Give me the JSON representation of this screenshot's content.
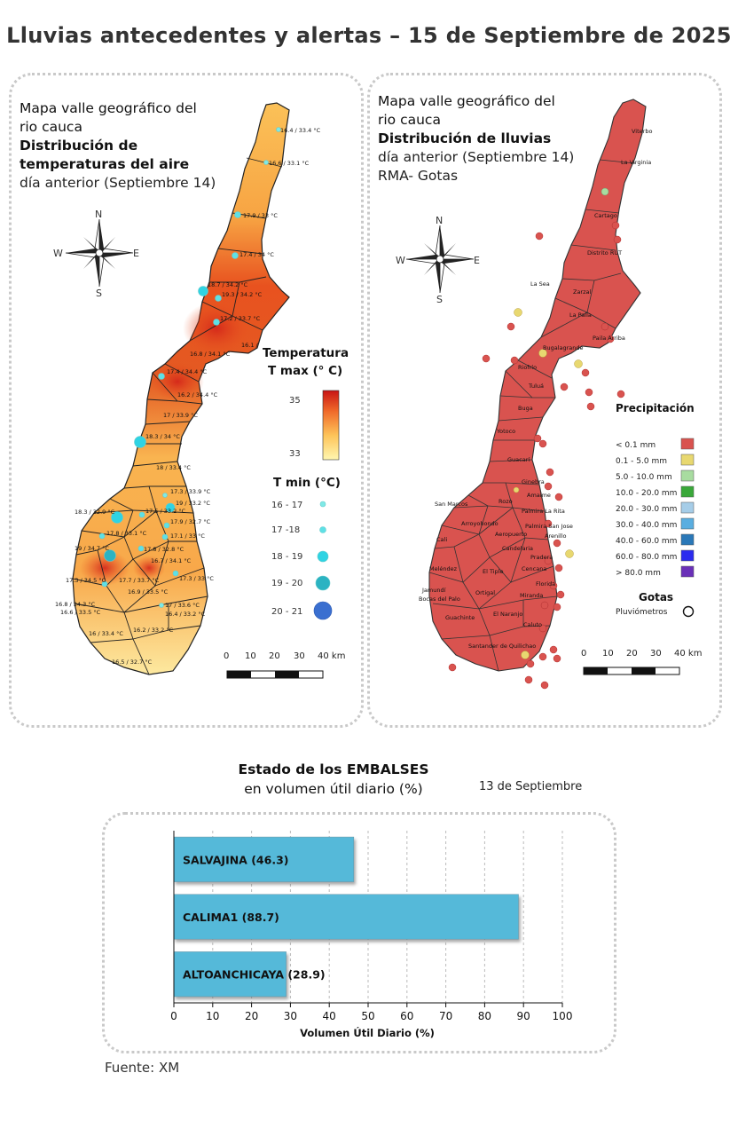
{
  "header": {
    "title": "Lluvias antecedentes y alertas – 15 de Septiembre de 2025"
  },
  "temp_map": {
    "title_lines": [
      "Mapa valle geográfico del",
      "rio cauca",
      "Distribución de",
      "temperaturas del aire"
    ],
    "subtitle": "día anterior (Septiembre 14)",
    "compass": {
      "n": "N",
      "s": "S",
      "e": "E",
      "w": "W"
    },
    "legend_tmax_title": [
      "Temperatura",
      "T max (° C)"
    ],
    "legend_tmax_high": "35",
    "legend_tmax_low": "33",
    "legend_tmin_title": "T min (°C)",
    "legend_tmin_items": [
      {
        "label": "16 - 17",
        "color": "#7fe9e6"
      },
      {
        "label": "17 -18",
        "color": "#5ee0e6"
      },
      {
        "label": "18 - 19",
        "color": "#2fd3e3"
      },
      {
        "label": "19 - 20",
        "color": "#2bb3c2"
      },
      {
        "label": "20 - 21",
        "color": "#3a6fd0"
      }
    ],
    "scale_labels": [
      "0",
      "10",
      "20",
      "30",
      "40 km"
    ],
    "station_labels": [
      "16.4 / 33.4 °C",
      "16.6 / 33.1 °C",
      "17.9 / 33 °C",
      "17.4 / 34 °C",
      "18.7 / 34.2 °C",
      "19.3 / 34.2 °C",
      "17.2 / 33.7 °C",
      "16.1 /",
      "16.8 / 34.1 °C",
      "17.4 / 34.4 °C",
      "16.2 / 34.4 °C",
      "17 / 33.9 °C",
      "18.3 / 34 °C",
      "18 / 33.4 °C",
      "17.3 / 33.9 °C",
      "19 / 33.2 °C",
      "18.3 / 32.9 °C",
      "17.5 / 33.2 °C",
      "17.9 / 32.7 °C",
      "17.8 / 33.1 °C",
      "17.1 / 33 °C",
      "19 / 34.7 °C",
      "17.8 / 32.8 °C",
      "16.7 / 34.1 °C",
      "17.3 / 34.5 °C",
      "17.7 / 33.7 °C",
      "16.9 / 33.5 °C",
      "17.3 / 33 °C",
      "16.8 / 34.3 °C",
      "16.6 / 33.5 °C",
      "17 / 33.6 °C",
      "16.4 / 33.2 °C",
      "16.2 / 33.2 °C",
      "16 / 33.4 °C",
      "16.5 / 32.7 °C"
    ]
  },
  "rain_map": {
    "title_lines": [
      "Mapa valle geográfico del",
      "rio cauca",
      "Distribución de lluvias"
    ],
    "subtitle_lines": [
      "día anterior (Septiembre 14)",
      "RMA- Gotas"
    ],
    "compass": {
      "n": "N",
      "s": "S",
      "e": "E",
      "w": "W"
    },
    "legend_title": "Precipitación",
    "legend_items": [
      {
        "label": "< 0.1 mm",
        "color": "#d9534f"
      },
      {
        "label": "0.1 - 5.0 mm",
        "color": "#e8d870"
      },
      {
        "label": "5.0 - 10.0 mm",
        "color": "#a8dca0"
      },
      {
        "label": "10.0 - 20.0 mm",
        "color": "#3aa83a"
      },
      {
        "label": "20.0 - 30.0 mm",
        "color": "#a6cde8"
      },
      {
        "label": "30.0 - 40.0 mm",
        "color": "#5aaee0"
      },
      {
        "label": "40.0 - 60.0 mm",
        "color": "#2a78b8"
      },
      {
        "label": "60.0 - 80.0 mm",
        "color": "#2b2bef"
      },
      {
        "label": "> 80.0 mm",
        "color": "#6a30b8"
      }
    ],
    "gotas_title": "Gotas",
    "gotas_label": "Pluviómetros",
    "scale_labels": [
      "0",
      "10",
      "20",
      "30",
      "40 km"
    ],
    "municipalities": [
      "Viterbo",
      "La Virginia",
      "Cartago",
      "Distrito RUT",
      "La Sea",
      "Zarzal",
      "La Paila",
      "Bugalagrande",
      "Paila Arriba",
      "Riofrío",
      "Tuluá",
      "Buga",
      "Yotoco",
      "Guacarí",
      "Ginebra",
      "Amaime",
      "San Marcos",
      "Rozo",
      "Palmira La Rita",
      "Arroyohondo",
      "Palmira San Jose",
      "Arenillo",
      "Cali",
      "Aeropuerto",
      "Candelaria",
      "Meléndez",
      "El Tiple",
      "Cencana",
      "Pradera",
      "Jamundí",
      "Bocas del Palo",
      "Ortigal",
      "Florida",
      "Miranda",
      "Guachinte",
      "El Naranjo",
      "Caluto",
      "Santander de Quilichao"
    ]
  },
  "reservoirs": {
    "title": "Estado de los EMBALSES",
    "subtitle": "en volumen útil diario (%)",
    "date": "13 de Septiembre",
    "source": "Fuente: XM"
  },
  "chart_data": {
    "type": "bar",
    "orientation": "horizontal",
    "categories": [
      "SALVAJINA (46.3)",
      "CALIMA1 (88.7)",
      "ALTOANCHICAYA (28.9)"
    ],
    "values": [
      46.3,
      88.7,
      28.9
    ],
    "title": "Estado de los EMBALSES",
    "xlabel": "Volumen Útil Diario (%)",
    "ylabel": "",
    "xlim": [
      0,
      100
    ],
    "xticks": [
      "0",
      "10",
      "20",
      "30",
      "40",
      "50",
      "60",
      "70",
      "80",
      "90",
      "100"
    ],
    "bar_color": "#55b9d9",
    "grid": "vertical dashed"
  }
}
